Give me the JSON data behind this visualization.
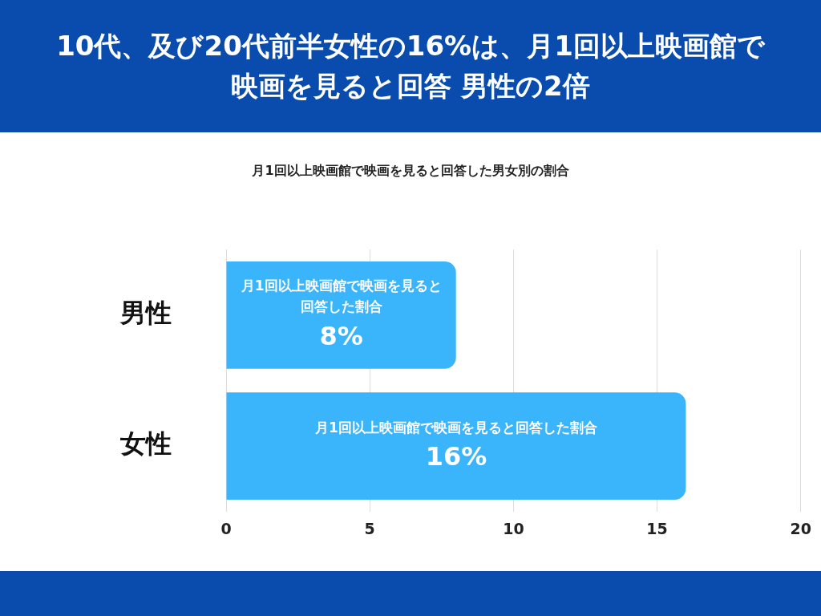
{
  "chart_data": {
    "type": "bar",
    "orientation": "horizontal",
    "title": "10代、及び20代前半女性の16%は、月1回以上映画館で映画を見ると回答 男性の2倍",
    "subtitle": "月1回以上映画館で映画を見ると回答した男女別の割合",
    "categories": [
      "男性",
      "女性"
    ],
    "series": [
      {
        "name": "月1回以上映画館で映画を見ると回答した割合",
        "color": "#3ab4fa",
        "values": [
          8,
          16
        ],
        "value_labels": [
          "8%",
          "16%"
        ]
      }
    ],
    "xlim": [
      0,
      20
    ],
    "xticks": [
      0,
      5,
      10,
      15,
      20
    ],
    "grid": "x",
    "legend": false
  }
}
